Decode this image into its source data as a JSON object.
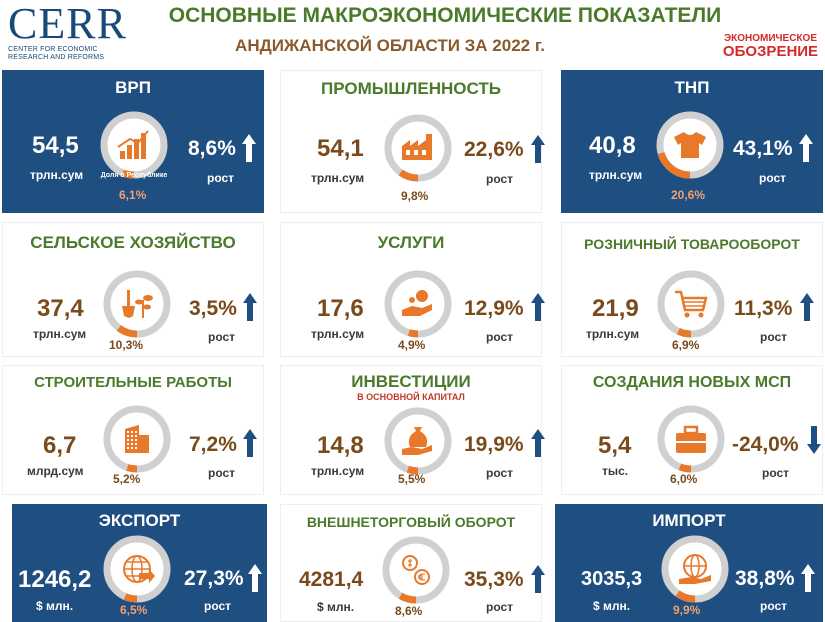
{
  "header": {
    "logo": "CERR",
    "logo_sub1": "CENTER FOR ECONOMIC",
    "logo_sub2": "RESEARCH AND REFORMS",
    "title_line1": "ОСНОВНЫЕ МАКРОЭКОНОМИЧЕСКИЕ ПОКАЗАТЕЛИ",
    "title_line2": "АНДИЖАНСКОЙ ОБЛАСТИ ЗА 2022 г.",
    "brand_line1": "ЭКОНОМИЧЕСКОЕ",
    "brand_line2": "ОБОЗРЕНИЕ"
  },
  "colors": {
    "dark_bg": "#1f4e80",
    "accent_orange": "#e8782a",
    "ring_gray": "#d0d0d0",
    "title_green": "#4a7a2a",
    "value_brown": "#7a4a1a"
  },
  "cards": {
    "vrp": {
      "title": "ВРП",
      "value": "54,5",
      "unit": "трлн.сум",
      "percent": "8,6%",
      "growth": "рост",
      "share": "6,1%",
      "share_fraction": 0.061,
      "icon_caption": "Доля в Республике",
      "trend": "up",
      "icon": "bar-chart-icon"
    },
    "industry": {
      "title": "ПРОМЫШЛЕННОСТЬ",
      "value": "54,1",
      "unit": "трлн.сум",
      "percent": "22,6%",
      "growth": "рост",
      "share": "9,8%",
      "share_fraction": 0.098,
      "trend": "up",
      "icon": "factory-icon"
    },
    "tnp": {
      "title": "ТНП",
      "value": "40,8",
      "unit": "трлн.сум",
      "percent": "43,1%",
      "growth": "рост",
      "share": "20,6%",
      "share_fraction": 0.206,
      "trend": "up",
      "icon": "tshirt-icon"
    },
    "agriculture": {
      "title": "СЕЛЬСКОЕ ХОЗЯЙСТВО",
      "value": "37,4",
      "unit": "трлн.сум",
      "percent": "3,5%",
      "growth": "рост",
      "share": "10,3%",
      "share_fraction": 0.103,
      "trend": "up",
      "icon": "shovel-plant-icon"
    },
    "services": {
      "title": "УСЛУГИ",
      "value": "17,6",
      "unit": "трлн.сум",
      "percent": "12,9%",
      "growth": "рост",
      "share": "4,9%",
      "share_fraction": 0.049,
      "trend": "up",
      "icon": "hand-service-icon"
    },
    "retail": {
      "title": "РОЗНИЧНЫЙ ТОВАРООБОРОТ",
      "value": "21,9",
      "unit": "трлн.сум",
      "percent": "11,3%",
      "growth": "рост",
      "share": "6,9%",
      "share_fraction": 0.069,
      "trend": "up",
      "icon": "cart-icon"
    },
    "construction": {
      "title": "СТРОИТЕЛЬНЫЕ РАБОТЫ",
      "value": "6,7",
      "unit": "млрд.сум",
      "percent": "7,2%",
      "growth": "рост",
      "share": "5,2%",
      "share_fraction": 0.052,
      "trend": "up",
      "icon": "building-icon"
    },
    "investment": {
      "title": "ИНВЕСТИЦИИ",
      "subtitle": "В ОСНОВНОЙ КАПИТАЛ",
      "value": "14,8",
      "unit": "трлн.сум",
      "percent": "19,9%",
      "growth": "рост",
      "share": "5,5%",
      "share_fraction": 0.055,
      "trend": "up",
      "icon": "money-bag-hand-icon"
    },
    "sme": {
      "title": "СОЗДАНИЯ НОВЫХ МСП",
      "value": "5,4",
      "unit": "тыс.",
      "percent": "-24,0%",
      "growth": "рост",
      "share": "6,0%",
      "share_fraction": 0.06,
      "trend": "down",
      "icon": "briefcase-icon"
    },
    "export": {
      "title": "ЭКСПОРТ",
      "value": "1246,2",
      "unit": "$ млн.",
      "percent": "27,3%",
      "growth": "рост",
      "share": "6,5%",
      "share_fraction": 0.065,
      "trend": "up",
      "icon": "globe-arrow-icon"
    },
    "trade": {
      "title": "ВНЕШНЕТОРГОВЫЙ ОБОРОТ",
      "value": "4281,4",
      "unit": "$ млн.",
      "percent": "35,3%",
      "growth": "рост",
      "share": "8,6%",
      "share_fraction": 0.086,
      "trend": "up",
      "icon": "currency-exchange-icon"
    },
    "import": {
      "title": "ИМПОРТ",
      "value": "3035,3",
      "unit": "$ млн.",
      "percent": "38,8%",
      "growth": "рост",
      "share": "9,9%",
      "share_fraction": 0.099,
      "trend": "up",
      "icon": "globe-hand-icon"
    }
  }
}
